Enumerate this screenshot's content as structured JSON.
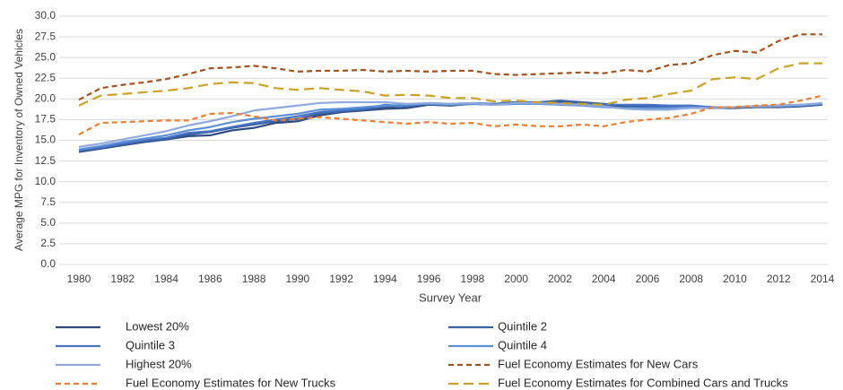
{
  "chart_data": {
    "type": "line",
    "x_label": "Survey Year",
    "y_label": "Average MPG for Inventory of Owned Vehicles",
    "x": [
      1980,
      1981,
      1982,
      1983,
      1984,
      1985,
      1986,
      1987,
      1988,
      1989,
      1990,
      1991,
      1992,
      1993,
      1994,
      1995,
      1996,
      1997,
      1998,
      1999,
      2000,
      2001,
      2002,
      2003,
      2004,
      2005,
      2006,
      2007,
      2008,
      2009,
      2010,
      2011,
      2012,
      2013,
      2014
    ],
    "xlim": [
      1980,
      2014
    ],
    "xticks": [
      1980,
      1982,
      1984,
      1986,
      1988,
      1990,
      1992,
      1994,
      1996,
      1998,
      2000,
      2002,
      2004,
      2006,
      2008,
      2010,
      2012,
      2014
    ],
    "ylim": [
      0,
      30
    ],
    "yticks": [
      {
        "value": 0,
        "label": "0.0"
      },
      {
        "value": 2.5,
        "label": "2.5"
      },
      {
        "value": 5,
        "label": "5.0"
      },
      {
        "value": 7.5,
        "label": "7.5"
      },
      {
        "value": 10,
        "label": "10.0"
      },
      {
        "value": 12.5,
        "label": "12.5"
      },
      {
        "value": 15,
        "label": "15.0"
      },
      {
        "value": 17.5,
        "label": "17.5"
      },
      {
        "value": 20,
        "label": "20.0"
      },
      {
        "value": 22.5,
        "label": "22.5"
      },
      {
        "value": 25,
        "label": "25.0"
      },
      {
        "value": 27.5,
        "label": "27.5"
      },
      {
        "value": 30,
        "label": "30.0"
      }
    ],
    "grid": true,
    "legend": "bottom",
    "series": [
      {
        "name": "Lowest 20%",
        "color": "#2e4a7d",
        "linestyle": "solid",
        "values": [
          13.6,
          14.0,
          14.4,
          14.8,
          15.1,
          15.5,
          15.6,
          16.2,
          16.5,
          17.1,
          17.3,
          18.0,
          18.4,
          18.6,
          18.8,
          18.9,
          19.3,
          19.2,
          19.4,
          19.3,
          19.5,
          19.5,
          19.6,
          19.5,
          19.3,
          19.0,
          18.9,
          18.9,
          19.0,
          18.9,
          18.9,
          19.0,
          19.0,
          19.1,
          19.3
        ]
      },
      {
        "name": "Quintile 2",
        "color": "#3b5fa0",
        "linestyle": "solid",
        "values": [
          13.7,
          14.1,
          14.5,
          14.9,
          15.2,
          15.7,
          16.0,
          16.5,
          16.9,
          17.3,
          17.6,
          18.2,
          18.5,
          18.7,
          19.0,
          19.2,
          19.4,
          19.3,
          19.5,
          19.4,
          19.6,
          19.6,
          19.8,
          19.6,
          19.4,
          19.2,
          19.1,
          19.1,
          19.1,
          19.0,
          19.0,
          19.1,
          19.1,
          19.2,
          19.4
        ]
      },
      {
        "name": "Quintile 3",
        "color": "#4472c4",
        "linestyle": "solid",
        "values": [
          13.8,
          14.1,
          14.6,
          15.0,
          15.3,
          15.9,
          16.1,
          16.6,
          17.1,
          17.5,
          17.9,
          18.4,
          18.6,
          18.8,
          19.3,
          19.1,
          19.5,
          19.4,
          19.5,
          19.4,
          19.6,
          19.6,
          19.5,
          19.4,
          19.3,
          19.3,
          19.3,
          19.2,
          19.2,
          19.0,
          19.0,
          19.1,
          19.2,
          19.3,
          19.4
        ]
      },
      {
        "name": "Quintile 4",
        "color": "#5b8fd6",
        "linestyle": "solid",
        "values": [
          13.9,
          14.3,
          14.8,
          15.2,
          15.6,
          16.2,
          16.6,
          17.2,
          17.6,
          17.9,
          18.2,
          18.7,
          18.8,
          19.0,
          19.2,
          19.3,
          19.4,
          19.3,
          19.4,
          19.3,
          19.4,
          19.4,
          19.3,
          19.2,
          19.0,
          18.9,
          18.9,
          18.9,
          19.0,
          18.9,
          19.0,
          19.1,
          19.1,
          19.2,
          19.4
        ]
      },
      {
        "name": "Highest 20%",
        "color": "#8faadc",
        "linestyle": "solid",
        "values": [
          14.2,
          14.6,
          15.1,
          15.6,
          16.1,
          16.8,
          17.3,
          17.9,
          18.6,
          18.9,
          19.2,
          19.5,
          19.6,
          19.6,
          19.6,
          19.4,
          19.5,
          19.4,
          19.5,
          19.3,
          19.5,
          19.5,
          19.4,
          19.3,
          19.1,
          18.8,
          18.7,
          18.7,
          18.9,
          18.9,
          19.0,
          19.1,
          19.2,
          19.3,
          19.5
        ]
      },
      {
        "name": "Fuel Economy Estimates for New Cars",
        "color": "#a5521d",
        "linestyle": "dashed",
        "values": [
          19.9,
          21.3,
          21.7,
          22.0,
          22.4,
          23.0,
          23.7,
          23.8,
          24.0,
          23.7,
          23.3,
          23.4,
          23.4,
          23.5,
          23.3,
          23.4,
          23.3,
          23.4,
          23.4,
          23.0,
          22.9,
          23.0,
          23.1,
          23.2,
          23.1,
          23.5,
          23.3,
          24.1,
          24.3,
          25.3,
          25.8,
          25.6,
          27.0,
          27.8,
          27.8
        ]
      },
      {
        "name": "Fuel Economy Estimates for New Trucks",
        "color": "#ed7d31",
        "linestyle": "dashed",
        "values": [
          15.7,
          17.1,
          17.2,
          17.3,
          17.4,
          17.4,
          18.2,
          18.3,
          17.9,
          17.4,
          17.6,
          17.8,
          17.6,
          17.4,
          17.2,
          17.0,
          17.2,
          17.0,
          17.1,
          16.7,
          16.9,
          16.7,
          16.7,
          16.9,
          16.7,
          17.2,
          17.5,
          17.7,
          18.2,
          19.0,
          19.0,
          19.2,
          19.3,
          19.8,
          20.4
        ]
      },
      {
        "name": "Fuel Economy Estimates for Combined Cars and Trucks",
        "color": "#c9a227",
        "linestyle": "longdash",
        "values": [
          19.2,
          20.4,
          20.6,
          20.8,
          21.0,
          21.3,
          21.8,
          22.0,
          21.9,
          21.3,
          21.1,
          21.3,
          21.1,
          20.9,
          20.4,
          20.5,
          20.4,
          20.1,
          20.1,
          19.7,
          19.8,
          19.6,
          19.5,
          19.4,
          19.3,
          19.9,
          20.1,
          20.6,
          21.0,
          22.4,
          22.6,
          22.4,
          23.7,
          24.3,
          24.3
        ]
      }
    ]
  }
}
